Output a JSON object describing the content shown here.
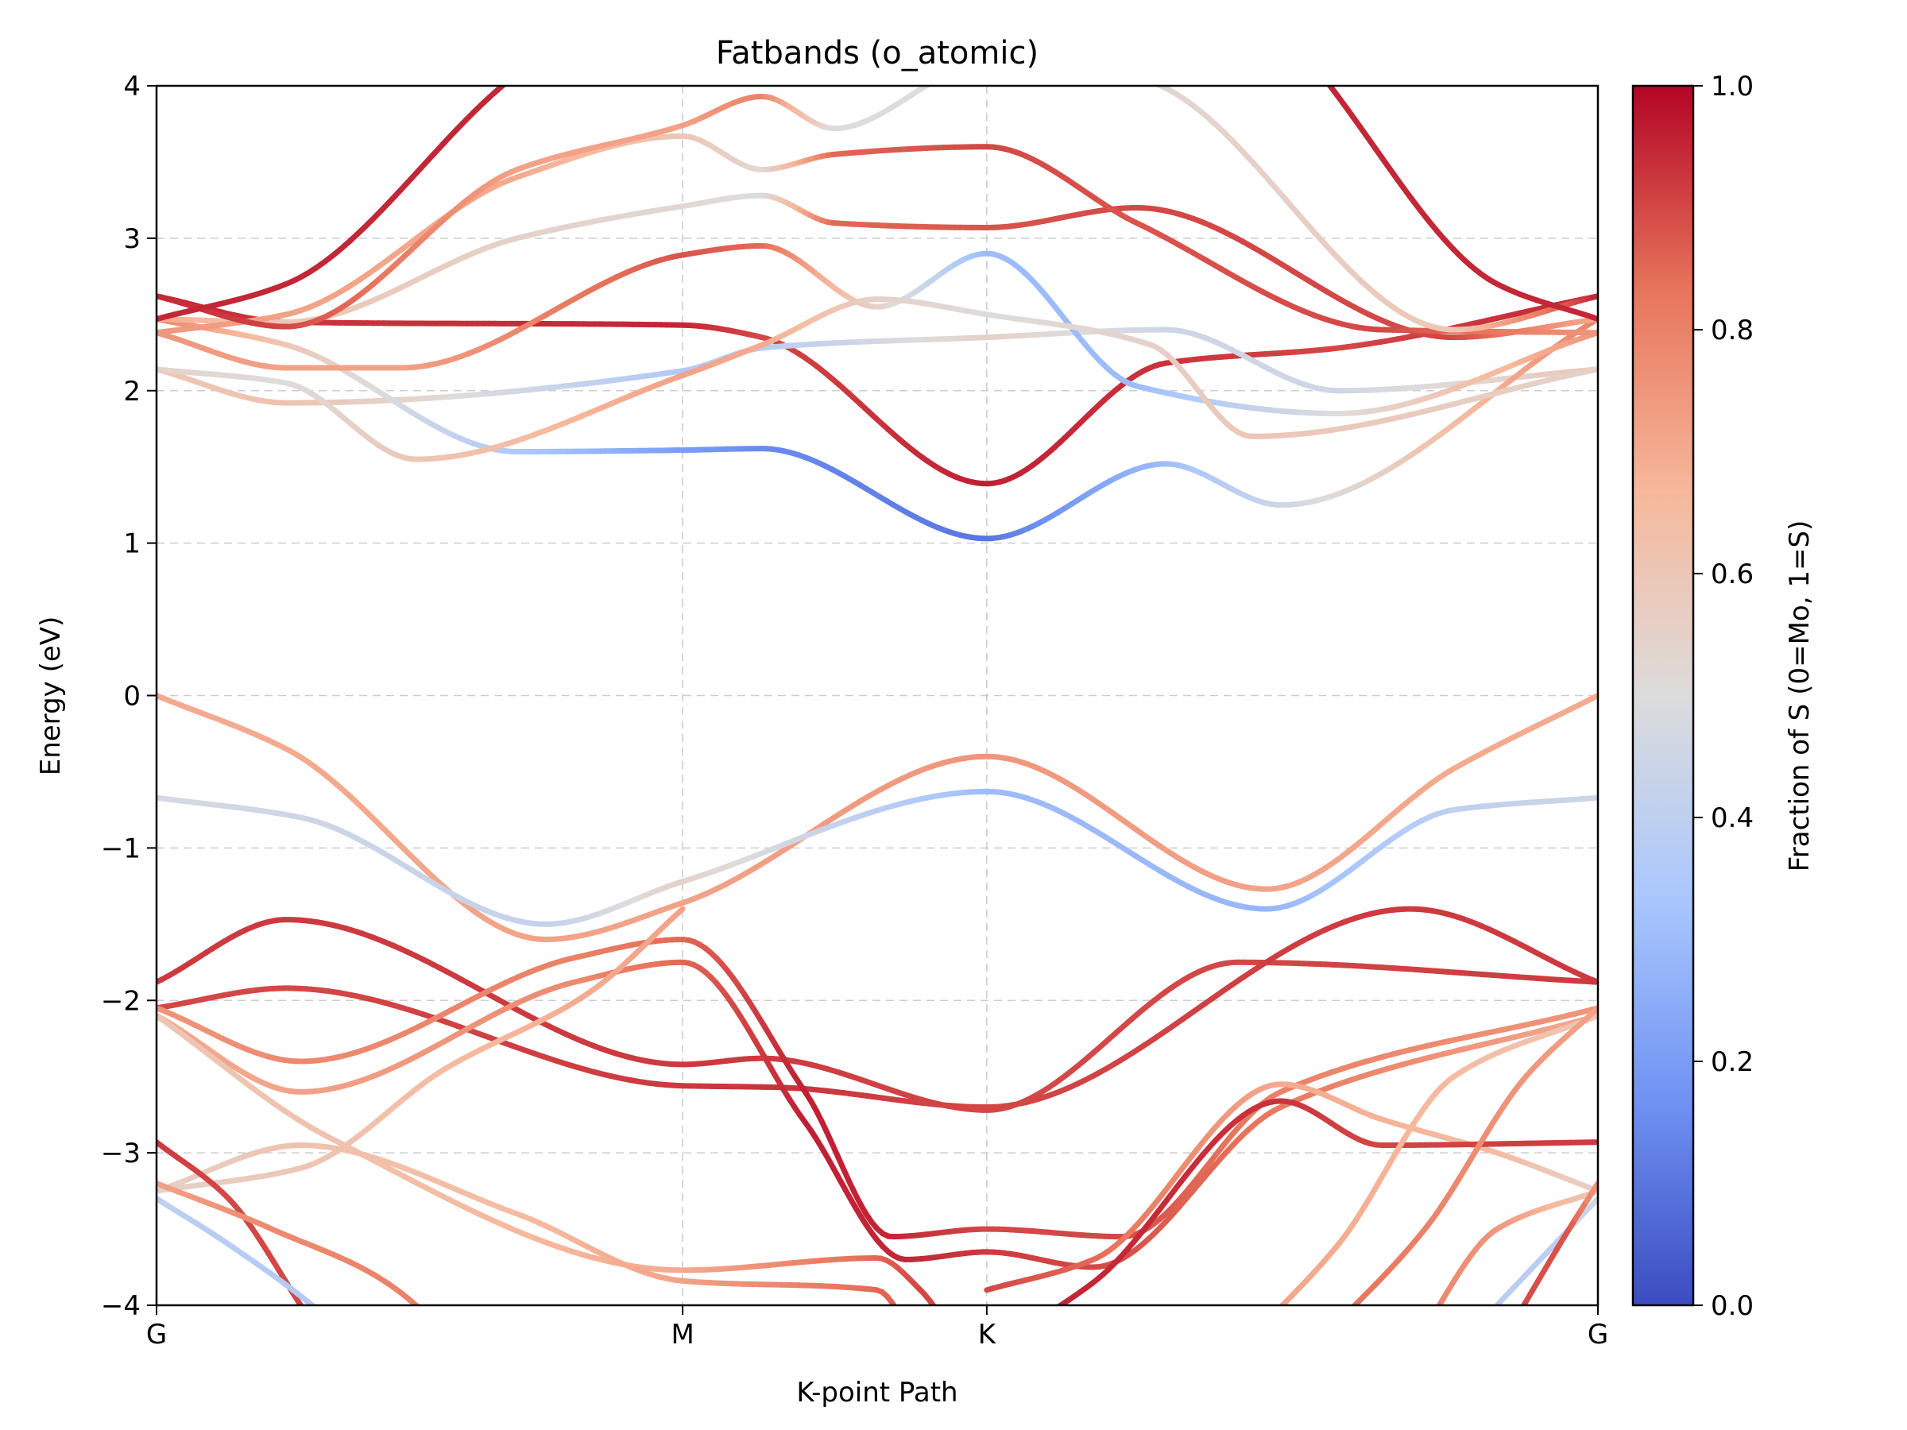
{
  "chart_data": {
    "type": "line",
    "title": "Fatbands (o_atomic)",
    "xlabel": "K-point Path",
    "ylabel": "Energy (eV)",
    "colorbar_label": "Fraction of S   (0=Mo, 1=S)",
    "colormap": "coolwarm",
    "colormap_stops": [
      "#3b4cc0",
      "#6f92f3",
      "#aac7fd",
      "#dddcdc",
      "#f7b89c",
      "#e7745b",
      "#b40426"
    ],
    "colorbar_range": [
      0,
      1
    ],
    "colorbar_ticks": [
      "0.0",
      "0.2",
      "0.4",
      "0.6",
      "0.8",
      "1.0"
    ],
    "xlim": [
      0,
      1
    ],
    "ylim": [
      -4,
      4
    ],
    "y_ticks": [
      -4,
      -3,
      -2,
      -1,
      0,
      1,
      2,
      3,
      4
    ],
    "y_tick_labels": [
      "−4",
      "−3",
      "−2",
      "−1",
      "0",
      "1",
      "2",
      "3",
      "4"
    ],
    "high_symmetry_points": [
      {
        "label": "G",
        "x": 0.0
      },
      {
        "label": "M",
        "x": 0.365
      },
      {
        "label": "K",
        "x": 0.576
      },
      {
        "label": "G",
        "x": 1.0
      }
    ],
    "grid": "dashed",
    "series": [
      {
        "points": [
          [
            0.0,
            -1.88
          ],
          [
            0.09,
            -1.47
          ],
          [
            0.365,
            -2.42
          ],
          [
            0.42,
            -2.38
          ],
          [
            0.576,
            -2.72
          ],
          [
            0.75,
            -1.75
          ],
          [
            1.0,
            -1.88
          ]
        ],
        "fraction": [
          0.92,
          0.92,
          0.92,
          0.92,
          0.9,
          0.9,
          0.92
        ]
      },
      {
        "points": [
          [
            0.0,
            -2.05
          ],
          [
            0.09,
            -1.92
          ],
          [
            0.365,
            -2.56
          ],
          [
            0.43,
            -2.57
          ],
          [
            0.576,
            -2.7
          ],
          [
            0.87,
            -1.4
          ],
          [
            1.0,
            -1.88
          ]
        ],
        "fraction": [
          0.9,
          0.9,
          0.92,
          0.93,
          0.9,
          0.92,
          0.92
        ]
      },
      {
        "points": [
          [
            0.0,
            0.0
          ],
          [
            0.09,
            -0.35
          ],
          [
            0.27,
            -1.6
          ],
          [
            0.365,
            -1.36
          ],
          [
            0.576,
            -0.4
          ],
          [
            0.77,
            -1.27
          ],
          [
            0.9,
            -0.48
          ],
          [
            1.0,
            0.0
          ]
        ],
        "fraction": [
          0.7,
          0.7,
          0.72,
          0.72,
          0.75,
          0.72,
          0.7,
          0.7
        ]
      },
      {
        "points": [
          [
            0.0,
            -0.67
          ],
          [
            0.1,
            -0.8
          ],
          [
            0.27,
            -1.5
          ],
          [
            0.365,
            -1.22
          ],
          [
            0.576,
            -0.63
          ],
          [
            0.77,
            -1.4
          ],
          [
            0.9,
            -0.75
          ],
          [
            1.0,
            -0.67
          ]
        ],
        "fraction": [
          0.48,
          0.45,
          0.42,
          0.55,
          0.3,
          0.28,
          0.4,
          0.45
        ]
      },
      {
        "points": [
          [
            0.0,
            2.62
          ],
          [
            0.09,
            2.45
          ],
          [
            0.365,
            2.43
          ],
          [
            0.42,
            2.35
          ],
          [
            0.576,
            1.39
          ],
          [
            0.7,
            2.18
          ],
          [
            0.82,
            2.28
          ],
          [
            1.0,
            2.62
          ]
        ],
        "fraction": [
          0.95,
          0.93,
          0.95,
          0.9,
          0.96,
          0.93,
          0.9,
          0.95
        ]
      },
      {
        "points": [
          [
            0.0,
            2.14
          ],
          [
            0.09,
            1.92
          ],
          [
            0.365,
            2.13
          ],
          [
            0.42,
            2.28
          ],
          [
            0.576,
            2.35
          ],
          [
            0.7,
            2.4
          ],
          [
            0.82,
            2.0
          ],
          [
            1.0,
            2.14
          ]
        ],
        "fraction": [
          0.6,
          0.62,
          0.35,
          0.38,
          0.55,
          0.45,
          0.45,
          0.6
        ]
      },
      {
        "points": [
          [
            0.0,
            2.47
          ],
          [
            0.09,
            2.3
          ],
          [
            0.25,
            1.6
          ],
          [
            0.365,
            1.61
          ],
          [
            0.42,
            1.62
          ],
          [
            0.576,
            1.03
          ],
          [
            0.7,
            1.52
          ],
          [
            0.78,
            1.25
          ],
          [
            1.0,
            2.47
          ]
        ],
        "fraction": [
          0.8,
          0.6,
          0.35,
          0.2,
          0.15,
          0.1,
          0.3,
          0.45,
          0.8
        ]
      },
      {
        "points": [
          [
            0.0,
            2.38
          ],
          [
            0.09,
            2.15
          ],
          [
            0.17,
            2.15
          ],
          [
            0.365,
            2.89
          ],
          [
            0.42,
            2.95
          ],
          [
            0.5,
            2.55
          ],
          [
            0.576,
            2.9
          ],
          [
            0.68,
            2.03
          ],
          [
            0.82,
            1.85
          ],
          [
            1.0,
            2.38
          ]
        ],
        "fraction": [
          0.75,
          0.72,
          0.72,
          0.88,
          0.85,
          0.55,
          0.3,
          0.3,
          0.5,
          0.75
        ]
      },
      {
        "points": [
          [
            0.0,
            2.14
          ],
          [
            0.09,
            2.05
          ],
          [
            0.18,
            1.55
          ],
          [
            0.365,
            2.1
          ],
          [
            0.42,
            2.3
          ],
          [
            0.5,
            2.6
          ],
          [
            0.576,
            2.5
          ],
          [
            0.69,
            2.3
          ],
          [
            0.76,
            1.7
          ],
          [
            1.0,
            2.14
          ]
        ],
        "fraction": [
          0.55,
          0.5,
          0.6,
          0.72,
          0.7,
          0.55,
          0.5,
          0.55,
          0.6,
          0.55
        ]
      },
      {
        "points": [
          [
            0.0,
            2.47
          ],
          [
            0.09,
            2.45
          ],
          [
            0.25,
            3.0
          ],
          [
            0.365,
            3.21
          ],
          [
            0.42,
            3.28
          ],
          [
            0.47,
            3.1
          ],
          [
            0.576,
            3.07
          ],
          [
            0.68,
            3.2
          ],
          [
            0.9,
            2.35
          ],
          [
            1.0,
            2.47
          ]
        ],
        "fraction": [
          0.7,
          0.6,
          0.55,
          0.52,
          0.5,
          0.85,
          0.88,
          0.9,
          0.9,
          0.7
        ]
      },
      {
        "points": [
          [
            0.0,
            2.38
          ],
          [
            0.09,
            2.5
          ],
          [
            0.25,
            3.4
          ],
          [
            0.365,
            3.67
          ],
          [
            0.42,
            3.45
          ],
          [
            0.47,
            3.55
          ],
          [
            0.576,
            3.6
          ],
          [
            0.68,
            3.1
          ],
          [
            0.85,
            2.4
          ],
          [
            1.0,
            2.38
          ]
        ],
        "fraction": [
          0.75,
          0.72,
          0.7,
          0.6,
          0.52,
          0.85,
          0.9,
          0.88,
          0.9,
          0.75
        ]
      },
      {
        "points": [
          [
            0.0,
            2.62
          ],
          [
            0.09,
            2.42
          ],
          [
            0.25,
            3.45
          ],
          [
            0.365,
            3.74
          ],
          [
            0.42,
            3.93
          ],
          [
            0.47,
            3.72
          ],
          [
            0.576,
            4.15
          ],
          [
            0.68,
            4.05
          ],
          [
            0.9,
            2.4
          ],
          [
            1.0,
            2.62
          ]
        ],
        "fraction": [
          0.95,
          0.9,
          0.72,
          0.72,
          0.8,
          0.5,
          0.5,
          0.52,
          0.6,
          0.95
        ]
      },
      {
        "points": [
          [
            0.0,
            2.47
          ],
          [
            0.09,
            2.7
          ],
          [
            0.24,
            4.0
          ],
          [
            0.28,
            4.3
          ],
          [
            0.79,
            4.3
          ],
          [
            0.81,
            4.05
          ],
          [
            0.93,
            2.7
          ],
          [
            1.0,
            2.47
          ]
        ],
        "fraction": [
          0.95,
          0.95,
          0.95,
          0.95,
          0.95,
          0.95,
          0.95,
          0.95
        ]
      },
      {
        "points": [
          [
            0.0,
            -2.05
          ],
          [
            0.1,
            -2.4
          ],
          [
            0.29,
            -1.72
          ],
          [
            0.365,
            -1.6
          ],
          [
            0.45,
            -2.6
          ],
          [
            0.51,
            -3.55
          ],
          [
            0.576,
            -3.5
          ],
          [
            0.67,
            -3.55
          ],
          [
            0.78,
            -2.6
          ],
          [
            1.0,
            -2.05
          ]
        ],
        "fraction": [
          0.75,
          0.78,
          0.8,
          0.85,
          0.96,
          0.95,
          0.9,
          0.9,
          0.8,
          0.75
        ]
      },
      {
        "points": [
          [
            0.0,
            -2.1
          ],
          [
            0.1,
            -2.6
          ],
          [
            0.29,
            -1.88
          ],
          [
            0.365,
            -1.75
          ],
          [
            0.45,
            -2.8
          ],
          [
            0.52,
            -3.7
          ],
          [
            0.576,
            -3.65
          ],
          [
            0.65,
            -3.75
          ],
          [
            0.78,
            -2.7
          ],
          [
            1.0,
            -2.1
          ]
        ],
        "fraction": [
          0.7,
          0.72,
          0.78,
          0.85,
          0.96,
          0.95,
          0.92,
          0.9,
          0.82,
          0.7
        ]
      },
      {
        "points": [
          [
            0.0,
            -2.1
          ],
          [
            0.12,
            -2.9
          ],
          [
            0.365,
            -3.77
          ],
          [
            0.5,
            -3.69
          ],
          [
            0.53,
            -3.9
          ],
          [
            0.56,
            -4.3
          ]
        ],
        "fraction": [
          0.6,
          0.62,
          0.7,
          0.85,
          0.9,
          0.9
        ]
      },
      {
        "points": [
          [
            0.0,
            -3.25
          ],
          [
            0.1,
            -3.1
          ],
          [
            0.2,
            -2.45
          ],
          [
            0.3,
            -1.95
          ],
          [
            0.365,
            -1.4
          ]
        ],
        "fraction": [
          0.55,
          0.6,
          0.65,
          0.7,
          0.72
        ]
      },
      {
        "points": [
          [
            0.0,
            -3.25
          ],
          [
            0.1,
            -2.95
          ],
          [
            0.25,
            -3.4
          ],
          [
            0.365,
            -3.84
          ],
          [
            0.5,
            -3.9
          ],
          [
            0.53,
            -4.3
          ]
        ],
        "fraction": [
          0.55,
          0.62,
          0.65,
          0.72,
          0.85,
          0.88
        ]
      },
      {
        "points": [
          [
            0.0,
            -2.93
          ],
          [
            0.05,
            -3.3
          ],
          [
            0.1,
            -4.0
          ],
          [
            0.12,
            -4.3
          ]
        ],
        "fraction": [
          0.92,
          0.9,
          0.9,
          0.9
        ]
      },
      {
        "points": [
          [
            0.0,
            -3.2
          ],
          [
            0.08,
            -3.5
          ],
          [
            0.18,
            -4.0
          ],
          [
            0.2,
            -4.3
          ]
        ],
        "fraction": [
          0.72,
          0.78,
          0.8,
          0.8
        ]
      },
      {
        "points": [
          [
            0.0,
            -3.3
          ],
          [
            0.05,
            -3.6
          ],
          [
            0.12,
            -4.1
          ],
          [
            0.14,
            -4.3
          ]
        ],
        "fraction": [
          0.4,
          0.38,
          0.35,
          0.35
        ]
      },
      {
        "points": [
          [
            0.576,
            -3.9
          ],
          [
            0.65,
            -3.7
          ],
          [
            0.78,
            -2.55
          ],
          [
            0.85,
            -2.78
          ],
          [
            0.93,
            -3.0
          ],
          [
            1.0,
            -3.25
          ]
        ],
        "fraction": [
          0.9,
          0.85,
          0.7,
          0.68,
          0.65,
          0.55
        ]
      },
      {
        "points": [
          [
            0.576,
            -4.3
          ],
          [
            0.65,
            -3.85
          ],
          [
            0.78,
            -2.66
          ],
          [
            0.85,
            -2.95
          ],
          [
            1.0,
            -2.93
          ]
        ],
        "fraction": [
          0.95,
          0.95,
          0.93,
          0.9,
          0.92
        ]
      },
      {
        "points": [
          [
            0.75,
            -4.3
          ],
          [
            0.82,
            -3.6
          ],
          [
            0.9,
            -2.5
          ],
          [
            1.0,
            -2.1
          ]
        ],
        "fraction": [
          0.72,
          0.7,
          0.65,
          0.6
        ]
      },
      {
        "points": [
          [
            0.8,
            -4.3
          ],
          [
            0.88,
            -3.5
          ],
          [
            0.95,
            -2.5
          ],
          [
            1.0,
            -2.05
          ]
        ],
        "fraction": [
          0.85,
          0.8,
          0.75,
          0.72
        ]
      },
      {
        "points": [
          [
            0.87,
            -4.3
          ],
          [
            0.93,
            -3.5
          ],
          [
            1.0,
            -3.25
          ]
        ],
        "fraction": [
          0.8,
          0.75,
          0.6
        ]
      },
      {
        "points": [
          [
            0.9,
            -4.3
          ],
          [
            0.96,
            -3.7
          ],
          [
            1.0,
            -3.3
          ]
        ],
        "fraction": [
          0.4,
          0.38,
          0.45
        ]
      },
      {
        "points": [
          [
            0.93,
            -4.3
          ],
          [
            0.98,
            -3.5
          ],
          [
            1.0,
            -3.2
          ]
        ],
        "fraction": [
          0.9,
          0.88,
          0.75
        ]
      }
    ]
  }
}
